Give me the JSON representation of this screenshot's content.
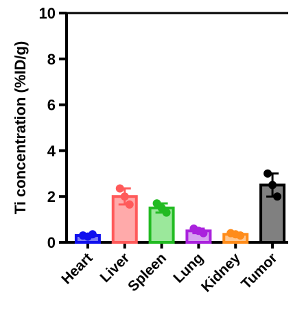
{
  "chart_data": {
    "type": "bar",
    "title": "",
    "xlabel": "",
    "ylabel": "Ti concentration (%ID/g)",
    "ylim": [
      0,
      10
    ],
    "yticks": [
      0,
      2,
      4,
      6,
      8,
      10
    ],
    "grid": false,
    "legend": "none",
    "categories": [
      "Heart",
      "Liver",
      "Spleen",
      "Lung",
      "Kidney",
      "Tumor"
    ],
    "values": [
      0.3,
      2.0,
      1.5,
      0.5,
      0.35,
      2.5
    ],
    "error_upper": [
      0.35,
      2.35,
      1.7,
      0.6,
      0.4,
      3.0
    ],
    "error_lower": [
      0.25,
      1.65,
      1.3,
      0.4,
      0.3,
      2.0
    ],
    "colors": [
      "#1010ee",
      "#ff5a5a",
      "#22bb22",
      "#aa22dd",
      "#ff8c1a",
      "#666666"
    ],
    "fill_colors": [
      "#7d7df5",
      "#ffaaaa",
      "#9be89b",
      "#d7a2f0",
      "#ffc790",
      "#808080"
    ],
    "points": [
      [
        0.3,
        0.35,
        0.25
      ],
      [
        2.35,
        1.65,
        2.0
      ],
      [
        1.7,
        1.3,
        1.5
      ],
      [
        0.6,
        0.4,
        0.5
      ],
      [
        0.4,
        0.3,
        0.35
      ],
      [
        3.0,
        2.0,
        2.5
      ]
    ]
  }
}
